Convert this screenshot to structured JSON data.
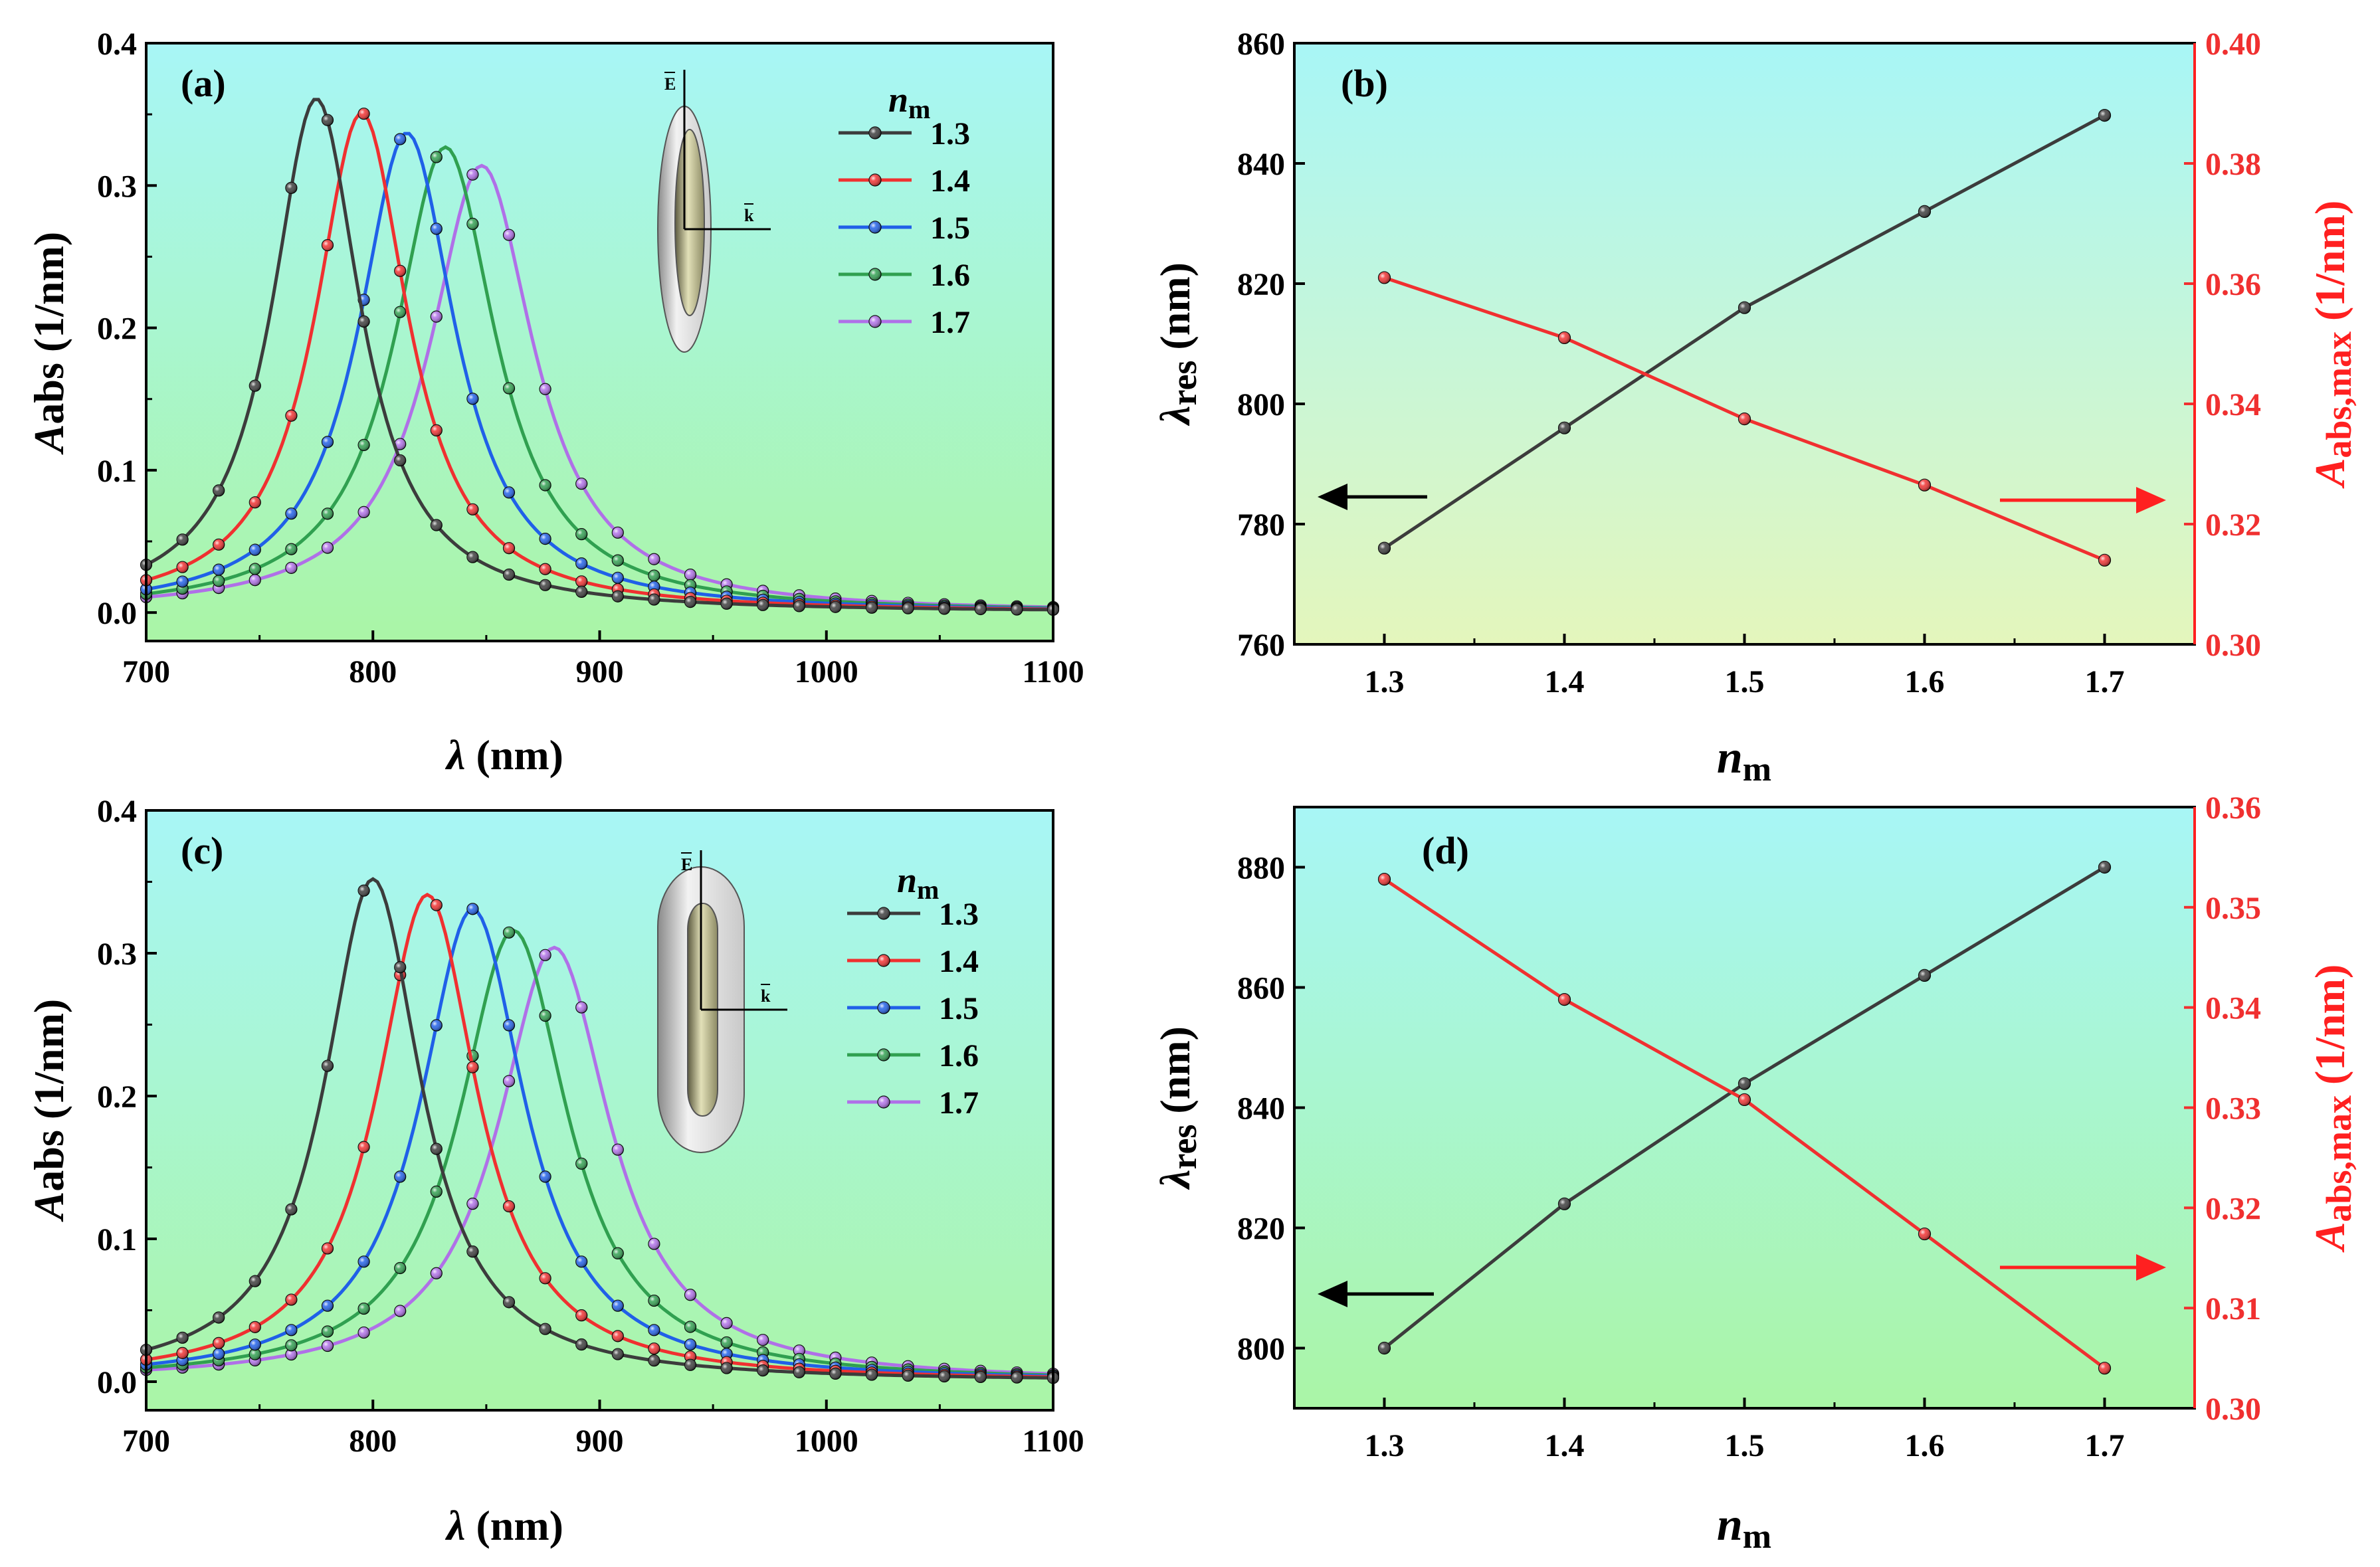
{
  "figure": {
    "arrow_left_color": "#000000",
    "arrow_right_color": "#ff2020"
  },
  "chart_data": [
    {
      "id": "a",
      "type": "line",
      "panel_label": "(a)",
      "xlabel_sym": "λ",
      "xlabel_unit": " (nm)",
      "ylabel_sym": "A",
      "ylabel_sub": "abs",
      "ylabel_unit": " (1/nm)",
      "xlim": [
        700,
        1100
      ],
      "ylim": [
        -0.02,
        0.4
      ],
      "xticks": [
        700,
        800,
        900,
        1000,
        1100
      ],
      "yticks": [
        0.0,
        0.1,
        0.2,
        0.3,
        0.4
      ],
      "legend_title_sym": "n",
      "legend_title_sub": "m",
      "legend_position": "top-right",
      "inset_labels": {
        "e": "E",
        "k": "k"
      },
      "inset_shape": "ellipsoid",
      "series": [
        {
          "name": "1.3",
          "color": "#3c3c3c",
          "peak": 775,
          "width": 24,
          "amp": 0.361
        },
        {
          "name": "1.4",
          "color": "#f03030",
          "peak": 795,
          "width": 25,
          "amp": 0.351
        },
        {
          "name": "1.5",
          "color": "#2060e8",
          "peak": 815,
          "width": 26,
          "amp": 0.337
        },
        {
          "name": "1.6",
          "color": "#30a050",
          "peak": 832,
          "width": 27,
          "amp": 0.327
        },
        {
          "name": "1.7",
          "color": "#b070e8",
          "peak": 848,
          "width": 28,
          "amp": 0.314
        }
      ]
    },
    {
      "id": "b",
      "type": "line",
      "panel_label": "(b)",
      "x": [
        1.3,
        1.4,
        1.5,
        1.6,
        1.7
      ],
      "xticks": [
        "1.3",
        "1.4",
        "1.5",
        "1.6",
        "1.7"
      ],
      "xlim": [
        1.25,
        1.75
      ],
      "xlabel_sym": "n",
      "xlabel_sub": "m",
      "left_axis": {
        "label_sym": "λ",
        "label_sub": "res",
        "label_unit": " (nm)",
        "ylim": [
          760,
          860
        ],
        "yticks": [
          760,
          780,
          800,
          820,
          840,
          860
        ],
        "values": [
          776,
          796,
          816,
          832,
          848
        ],
        "color": "#3c3c3c"
      },
      "right_axis": {
        "label_sym": "A",
        "label_sub": "abs,max",
        "label_unit": " (1/nm)",
        "ylim": [
          0.3,
          0.4
        ],
        "yticks": [
          "0.30",
          "0.32",
          "0.34",
          "0.36",
          "0.38",
          "0.40"
        ],
        "values": [
          0.361,
          0.351,
          0.3375,
          0.3265,
          0.314
        ],
        "color": "#f03030"
      }
    },
    {
      "id": "c",
      "type": "line",
      "panel_label": "(c)",
      "xlabel_sym": "λ",
      "xlabel_unit": " (nm)",
      "ylabel_sym": "A",
      "ylabel_sub": "abs",
      "ylabel_unit": " (1/nm)",
      "xlim": [
        700,
        1100
      ],
      "ylim": [
        -0.02,
        0.4
      ],
      "xticks": [
        700,
        800,
        900,
        1000,
        1100
      ],
      "yticks": [
        0.0,
        0.1,
        0.2,
        0.3,
        0.4
      ],
      "legend_title_sym": "n",
      "legend_title_sub": "m",
      "legend_position": "top-right",
      "inset_labels": {
        "e": "E",
        "k": "k"
      },
      "inset_shape": "capsule",
      "series": [
        {
          "name": "1.3",
          "color": "#3c3c3c",
          "peak": 800,
          "width": 26,
          "amp": 0.352
        },
        {
          "name": "1.4",
          "color": "#f03030",
          "peak": 824,
          "width": 27,
          "amp": 0.341
        },
        {
          "name": "1.5",
          "color": "#2060e8",
          "peak": 844,
          "width": 28,
          "amp": 0.331
        },
        {
          "name": "1.6",
          "color": "#30a050",
          "peak": 862,
          "width": 29,
          "amp": 0.316
        },
        {
          "name": "1.7",
          "color": "#b070e8",
          "peak": 880,
          "width": 30,
          "amp": 0.304
        }
      ]
    },
    {
      "id": "d",
      "type": "line",
      "panel_label": "(d)",
      "x": [
        1.3,
        1.4,
        1.5,
        1.6,
        1.7
      ],
      "xticks": [
        "1.3",
        "1.4",
        "1.5",
        "1.6",
        "1.7"
      ],
      "xlim": [
        1.25,
        1.75
      ],
      "xlabel_sym": "n",
      "xlabel_sub": "m",
      "left_axis": {
        "label_sym": "λ",
        "label_sub": "res",
        "label_unit": " (nm)",
        "ylim": [
          790,
          890
        ],
        "yticks": [
          800,
          820,
          840,
          860,
          880
        ],
        "values": [
          800,
          824,
          844,
          862,
          880
        ],
        "color": "#3c3c3c"
      },
      "right_axis": {
        "label_sym": "A",
        "label_sub": "abs,max",
        "label_unit": " (1/nm)",
        "ylim": [
          0.3,
          0.36
        ],
        "yticks": [
          "0.30",
          "0.31",
          "0.32",
          "0.33",
          "0.34",
          "0.35",
          "0.36"
        ],
        "values": [
          0.3528,
          0.3408,
          0.3308,
          0.3174,
          0.304
        ],
        "color": "#f03030"
      }
    }
  ]
}
